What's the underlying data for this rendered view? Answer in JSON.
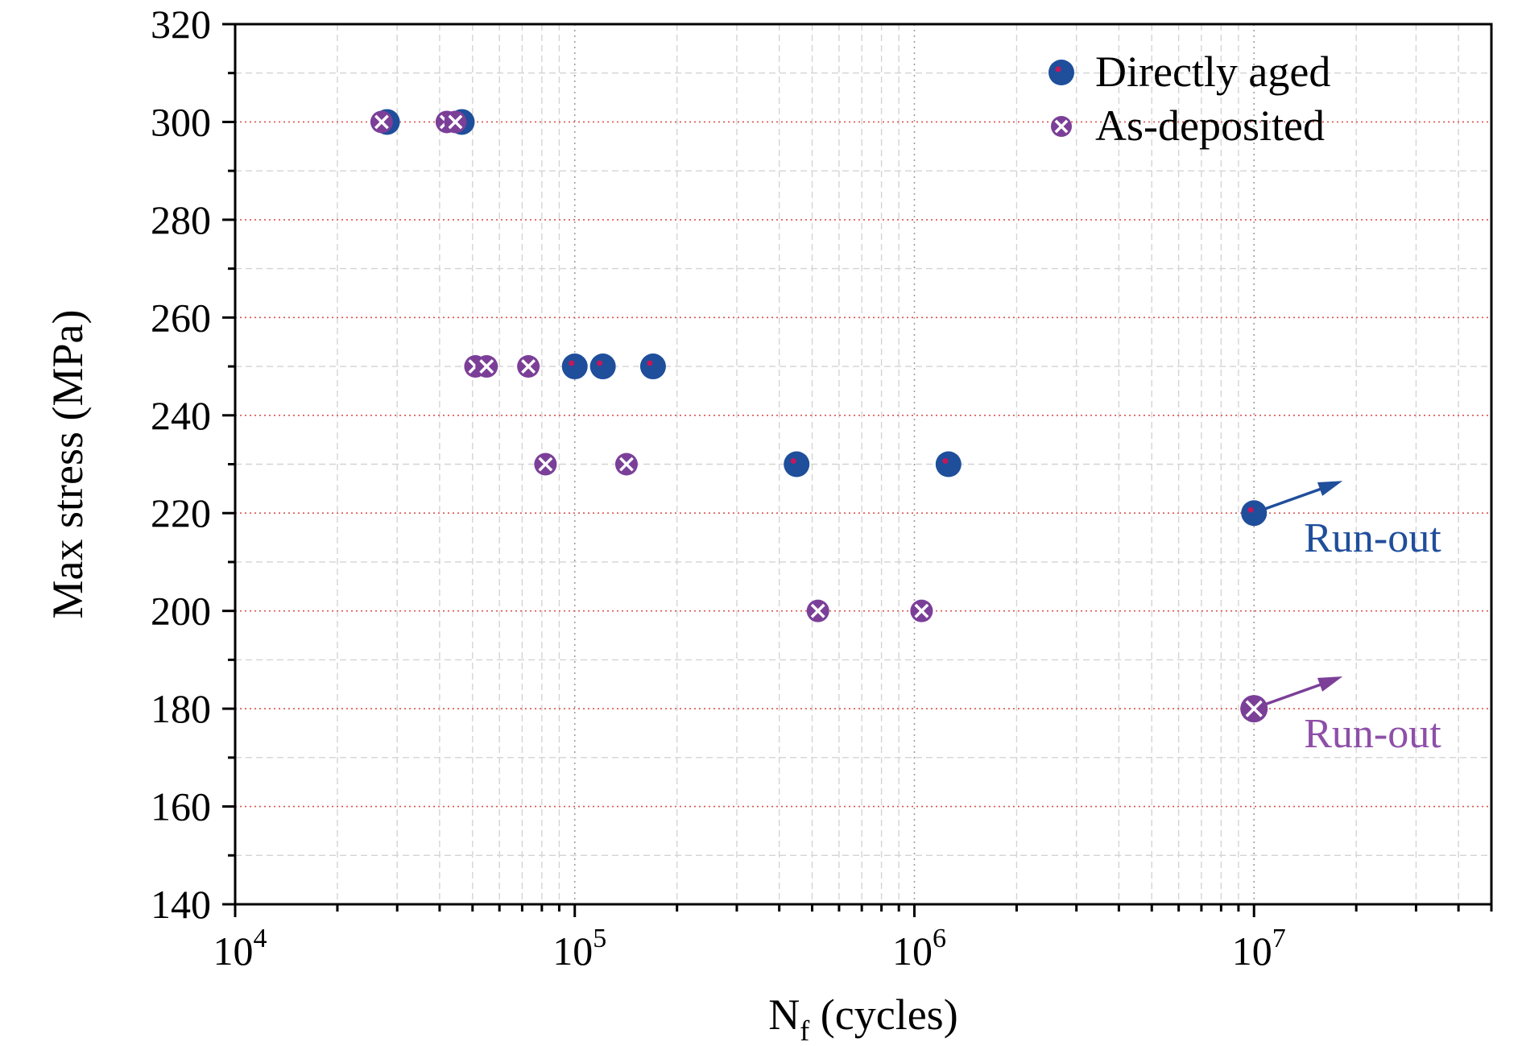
{
  "chart_data": {
    "type": "scatter",
    "xscale": "log",
    "xlim": [
      10000,
      50000000
    ],
    "ylim": [
      140,
      320
    ],
    "xlabel": {
      "main": "N",
      "sub": "f",
      "rest": " (cycles)"
    },
    "ylabel": "Max stress (MPa)",
    "yticks": [
      140,
      160,
      180,
      200,
      220,
      240,
      260,
      280,
      300,
      320
    ],
    "xticks": [
      {
        "value": 10000,
        "base": "10",
        "exp": "4"
      },
      {
        "value": 100000,
        "base": "10",
        "exp": "5"
      },
      {
        "value": 1000000,
        "base": "10",
        "exp": "6"
      },
      {
        "value": 10000000,
        "base": "10",
        "exp": "7"
      }
    ],
    "grid": true,
    "legend_position": "top-right",
    "series": [
      {
        "name": "Directly aged",
        "marker": "circle",
        "color": "#1f4e9b",
        "center_color": "#c2185b",
        "points": [
          [
            28000,
            300
          ],
          [
            46500,
            300
          ],
          [
            100000,
            250
          ],
          [
            121000,
            250
          ],
          [
            170000,
            250
          ],
          [
            450000,
            230
          ],
          [
            1260000,
            230
          ]
        ],
        "runout": [
          [
            10000000,
            220
          ]
        ]
      },
      {
        "name": "As-deposited",
        "marker": "x-circle",
        "color": "#7b3f98",
        "points": [
          [
            27000,
            300
          ],
          [
            42000,
            300
          ],
          [
            44500,
            300
          ],
          [
            51000,
            250
          ],
          [
            55000,
            250
          ],
          [
            73000,
            250
          ],
          [
            82000,
            230
          ],
          [
            142000,
            230
          ],
          [
            520000,
            200
          ],
          [
            1050000,
            200
          ]
        ],
        "runout": [
          [
            10000000,
            180
          ]
        ]
      }
    ],
    "annotations": [
      {
        "text": "Run-out",
        "series": "Directly aged",
        "color": "#1f4e9b"
      },
      {
        "text": "Run-out",
        "series": "As-deposited",
        "color": "#8e4fa8"
      }
    ]
  }
}
